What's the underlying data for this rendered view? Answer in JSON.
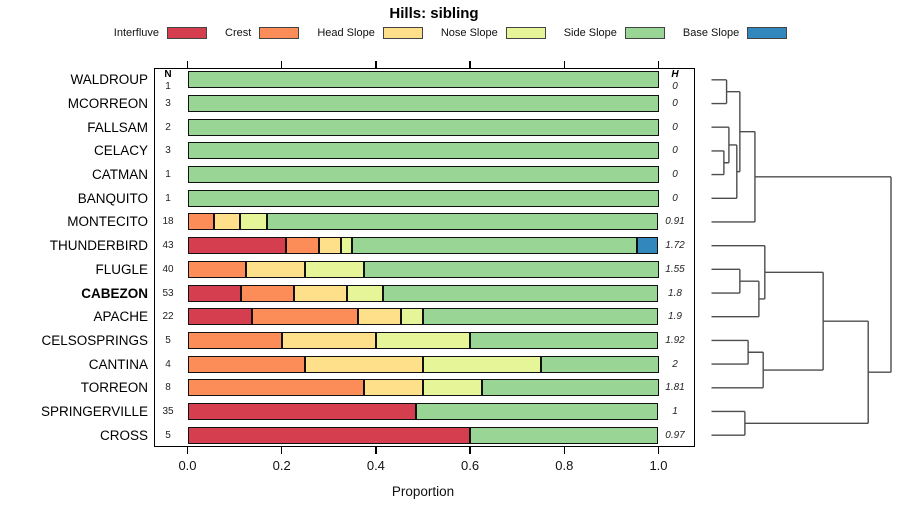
{
  "chart_data": {
    "type": "bar",
    "subtype": "horizontal-stacked-with-dendrogram",
    "title": "Hills: sibling",
    "xlabel": "Proportion",
    "xlim": [
      0,
      1
    ],
    "xticks": [
      "0.0",
      "0.2",
      "0.4",
      "0.6",
      "0.8",
      "1.0"
    ],
    "n_header": "N",
    "h_header": "H",
    "legend_position": "top",
    "categories": [
      "Interfluve",
      "Crest",
      "Head Slope",
      "Nose Slope",
      "Side Slope",
      "Base Slope"
    ],
    "colors": [
      "#D53E4F",
      "#FC8D59",
      "#FEE08B",
      "#E6F598",
      "#99D594",
      "#3288BD"
    ],
    "rows": [
      {
        "name": "WALDROUP",
        "n": "1",
        "h": "0",
        "bold": false,
        "values": [
          0,
          0,
          0,
          0,
          1,
          0
        ]
      },
      {
        "name": "MCORREON",
        "n": "3",
        "h": "0",
        "bold": false,
        "values": [
          0,
          0,
          0,
          0,
          1,
          0
        ]
      },
      {
        "name": "FALLSAM",
        "n": "2",
        "h": "0",
        "bold": false,
        "values": [
          0,
          0,
          0,
          0,
          1,
          0
        ]
      },
      {
        "name": "CELACY",
        "n": "3",
        "h": "0",
        "bold": false,
        "values": [
          0,
          0,
          0,
          0,
          1,
          0
        ]
      },
      {
        "name": "CATMAN",
        "n": "1",
        "h": "0",
        "bold": false,
        "values": [
          0,
          0,
          0,
          0,
          1,
          0
        ]
      },
      {
        "name": "BANQUITO",
        "n": "1",
        "h": "0",
        "bold": false,
        "values": [
          0,
          0,
          0,
          0,
          1,
          0
        ]
      },
      {
        "name": "MONTECITO",
        "n": "18",
        "h": "0.91",
        "bold": false,
        "values": [
          0,
          0.056,
          0.056,
          0.056,
          0.832,
          0
        ]
      },
      {
        "name": "THUNDERBIRD",
        "n": "43",
        "h": "1.72",
        "bold": false,
        "values": [
          0.209,
          0.07,
          0.047,
          0.023,
          0.605,
          0.046
        ]
      },
      {
        "name": "FLUGLE",
        "n": "40",
        "h": "1.55",
        "bold": false,
        "values": [
          0,
          0.125,
          0.125,
          0.125,
          0.625,
          0
        ]
      },
      {
        "name": "CABEZON",
        "n": "53",
        "h": "1.8",
        "bold": true,
        "values": [
          0.113,
          0.113,
          0.113,
          0.076,
          0.585,
          0
        ]
      },
      {
        "name": "APACHE",
        "n": "22",
        "h": "1.9",
        "bold": false,
        "values": [
          0.136,
          0.227,
          0.091,
          0.046,
          0.5,
          0
        ]
      },
      {
        "name": "CELSOSPRINGS",
        "n": "5",
        "h": "1.92",
        "bold": false,
        "values": [
          0,
          0.2,
          0.2,
          0.2,
          0.4,
          0
        ]
      },
      {
        "name": "CANTINA",
        "n": "4",
        "h": "2",
        "bold": false,
        "values": [
          0,
          0.25,
          0.25,
          0.25,
          0.25,
          0
        ]
      },
      {
        "name": "TORREON",
        "n": "8",
        "h": "1.81",
        "bold": false,
        "values": [
          0,
          0.375,
          0.125,
          0.125,
          0.375,
          0
        ]
      },
      {
        "name": "SPRINGERVILLE",
        "n": "35",
        "h": "1",
        "bold": false,
        "values": [
          0.486,
          0,
          0,
          0,
          0.514,
          0
        ]
      },
      {
        "name": "CROSS",
        "n": "5",
        "h": "0.97",
        "bold": false,
        "values": [
          0.6,
          0,
          0,
          0,
          0.4,
          0
        ]
      }
    ],
    "dendrogram": {
      "line_color": "#4d4d4d",
      "merges": [
        {
          "id": "A",
          "children": [
            "WALDROUP",
            "MCORREON"
          ],
          "height": 0.084
        },
        {
          "id": "B",
          "children": [
            "CELACY",
            "CATMAN"
          ],
          "height": 0.069
        },
        {
          "id": "C",
          "children": [
            "FALLSAM",
            "B"
          ],
          "height": 0.097
        },
        {
          "id": "E",
          "children": [
            "C",
            "BANQUITO"
          ],
          "height": 0.141
        },
        {
          "id": "D",
          "children": [
            "A",
            "E"
          ],
          "height": 0.158
        },
        {
          "id": "F",
          "children": [
            "D",
            "MONTECITO"
          ],
          "height": 0.242
        },
        {
          "id": "F2",
          "children": [
            "FLUGLE",
            "CABEZON"
          ],
          "height": 0.158
        },
        {
          "id": "G",
          "children": [
            "F2",
            "APACHE"
          ],
          "height": 0.264
        },
        {
          "id": "H8",
          "children": [
            "THUNDERBIRD",
            "G"
          ],
          "height": 0.297
        },
        {
          "id": "I",
          "children": [
            "CELSOSPRINGS",
            "CANTINA"
          ],
          "height": 0.204
        },
        {
          "id": "J",
          "children": [
            "I",
            "TORREON"
          ],
          "height": 0.288
        },
        {
          "id": "K",
          "children": [
            "H8",
            "J"
          ],
          "height": 0.622
        },
        {
          "id": "L",
          "children": [
            "SPRINGERVILLE",
            "CROSS"
          ],
          "height": 0.186
        },
        {
          "id": "M",
          "children": [
            "K",
            "L"
          ],
          "height": 0.873
        },
        {
          "id": "ROOT",
          "children": [
            "F",
            "M"
          ],
          "height": 1.0
        }
      ]
    }
  }
}
